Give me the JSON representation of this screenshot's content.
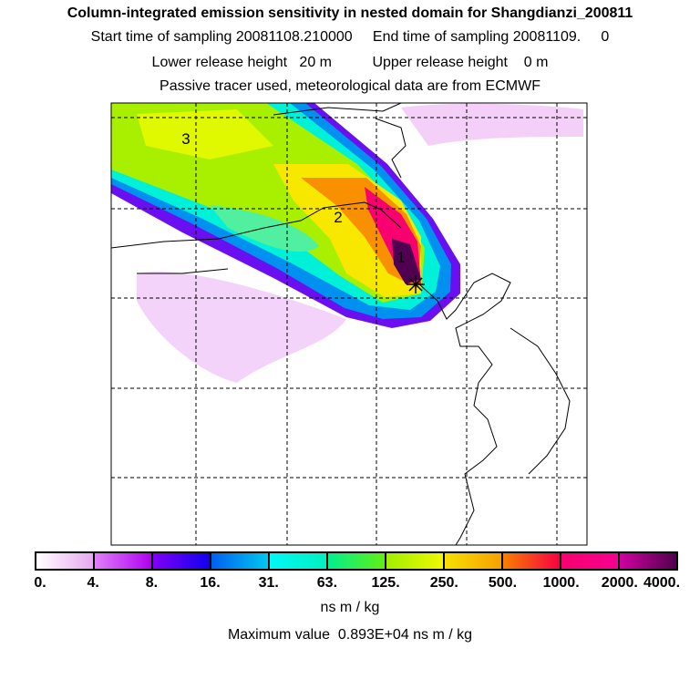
{
  "header": {
    "title": "Column-integrated emission sensitivity in nested domain for Shangdianzi_200811",
    "sampling": "Start time of sampling 20081108.210000     End time of sampling 20081109.     0",
    "release": "Lower release height   20 m          Upper release height    0 m",
    "tracer": "Passive tracer used, meteorological data are from ECMWF"
  },
  "map": {
    "labels": [
      "1",
      "2",
      "3"
    ],
    "station_marker": "star-marker"
  },
  "colorbar": {
    "ticks": [
      "0.",
      "4.",
      "8.",
      "16.",
      "31.",
      "63.",
      "125.",
      "250.",
      "500.",
      "1000.",
      "2000.",
      "4000."
    ],
    "segments": [
      [
        "#ffffff",
        "#e8a8f0"
      ],
      [
        "#e080f8",
        "#b000f0"
      ],
      [
        "#8000f8",
        "#1000f0"
      ],
      [
        "#0060f0",
        "#00c8f0"
      ],
      [
        "#00f8f8",
        "#00f0c0"
      ],
      [
        "#00f090",
        "#60f010"
      ],
      [
        "#a0f000",
        "#f0f800"
      ],
      [
        "#f8e000",
        "#f8a000"
      ],
      [
        "#f88000",
        "#f80040"
      ],
      [
        "#f80070",
        "#f80090"
      ],
      [
        "#d000a0",
        "#500050"
      ]
    ],
    "unit": "ns m / kg",
    "max_value": "Maximum value  0.893E+04 ns m / kg"
  }
}
